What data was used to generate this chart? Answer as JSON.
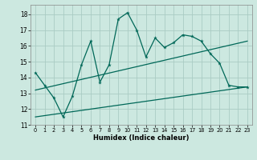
{
  "xlabel": "Humidex (Indice chaleur)",
  "background_color": "#cce8e0",
  "grid_color": "#aaccc4",
  "line_color": "#006858",
  "xlim": [
    -0.5,
    23.5
  ],
  "ylim": [
    11,
    18.6
  ],
  "yticks": [
    11,
    12,
    13,
    14,
    15,
    16,
    17,
    18
  ],
  "xticks": [
    0,
    1,
    2,
    3,
    4,
    5,
    6,
    7,
    8,
    9,
    10,
    11,
    12,
    13,
    14,
    15,
    16,
    17,
    18,
    19,
    20,
    21,
    22,
    23
  ],
  "line1_x": [
    0,
    1,
    2,
    3,
    4,
    5,
    6,
    7,
    8,
    9,
    10,
    11,
    12,
    13,
    14,
    15,
    16,
    17,
    18,
    19,
    20,
    21,
    22,
    23
  ],
  "line1_y": [
    14.3,
    13.5,
    12.7,
    11.5,
    12.8,
    14.8,
    16.3,
    13.7,
    14.8,
    17.7,
    18.1,
    17.0,
    15.3,
    16.5,
    15.9,
    16.2,
    16.7,
    16.6,
    16.3,
    15.5,
    14.9,
    13.5,
    13.4,
    13.4
  ],
  "line2_x": [
    0,
    23
  ],
  "line2_y": [
    13.2,
    16.3
  ],
  "line3_x": [
    0,
    23
  ],
  "line3_y": [
    11.5,
    13.4
  ]
}
